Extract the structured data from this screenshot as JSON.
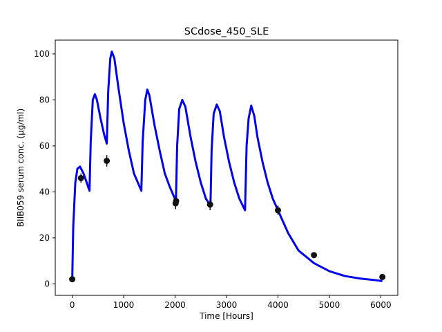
{
  "chart_data": {
    "type": "line",
    "title": "SCdose_450_SLE",
    "xlabel": "Time [Hours]",
    "ylabel": "BIIB059 serum conc. (µg/ml)",
    "xlim": [
      -330,
      6330
    ],
    "ylim": [
      -5,
      106
    ],
    "xticks": [
      0,
      1000,
      2000,
      3000,
      4000,
      5000,
      6000
    ],
    "yticks": [
      0,
      20,
      40,
      60,
      80,
      100
    ],
    "xtick_labels": [
      "0",
      "1000",
      "2000",
      "3000",
      "4000",
      "5000",
      "6000"
    ],
    "ytick_labels": [
      "0",
      "20",
      "40",
      "60",
      "80",
      "100"
    ],
    "grid": false,
    "legend": "none",
    "colors": {
      "model": "#0000ee",
      "observed": "#111111"
    },
    "series": [
      {
        "kind": "line",
        "x": [
          0,
          20,
          60,
          100,
          150,
          220,
          336,
          360,
          400,
          440,
          480,
          550,
          620,
          672,
          700,
          740,
          770,
          820,
          900,
          1000,
          1100,
          1200,
          1344,
          1370,
          1420,
          1460,
          1500,
          1600,
          1700,
          1800,
          1900,
          2016,
          2040,
          2080,
          2140,
          2200,
          2300,
          2400,
          2500,
          2600,
          2688,
          2710,
          2750,
          2810,
          2870,
          2950,
          3050,
          3150,
          3250,
          3360,
          3390,
          3430,
          3480,
          3540,
          3600,
          3700,
          3800,
          3900,
          4030,
          4200,
          4400,
          4700,
          5000,
          5300,
          5600,
          5900,
          6030
        ],
        "y": [
          1.5,
          25,
          44,
          50,
          51,
          48,
          40.5,
          62,
          80,
          82.5,
          80,
          72,
          65,
          61,
          84,
          98,
          101,
          98,
          85,
          70,
          58,
          48,
          40.5,
          62,
          80,
          84.5,
          82,
          69,
          58,
          48,
          42,
          36,
          60,
          76,
          80,
          77,
          64,
          53,
          44,
          37,
          34,
          58,
          74,
          78,
          75,
          64,
          53,
          44,
          37,
          32,
          60,
          72,
          77.5,
          73,
          64,
          53,
          44,
          37,
          30.5,
          22,
          14.5,
          9,
          5.5,
          3.4,
          2.3,
          1.6,
          1.2
        ]
      },
      {
        "kind": "scatter",
        "x": [
          0,
          170,
          672,
          2010,
          2020,
          2680,
          4000,
          4700,
          6030
        ],
        "y": [
          2,
          46,
          53.5,
          35,
          36,
          34.5,
          32,
          12.5,
          3
        ],
        "yerr": [
          0,
          2,
          2.5,
          2.5,
          1.5,
          2.5,
          2,
          0,
          0
        ]
      }
    ]
  }
}
